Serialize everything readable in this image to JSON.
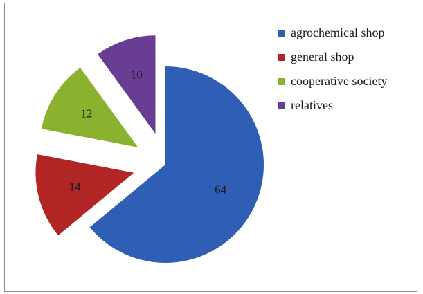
{
  "chart_data": {
    "type": "pie",
    "exploded": true,
    "legend_position": "right",
    "categories": [
      "agrochemical shop",
      "general shop",
      "cooperative society",
      "relatives"
    ],
    "values": [
      64,
      14,
      12,
      10
    ],
    "data_labels": [
      "64",
      "14",
      "12",
      "10"
    ],
    "colors": [
      "#2e5fb4",
      "#b22525",
      "#8bb22f",
      "#6a3d94"
    ]
  }
}
